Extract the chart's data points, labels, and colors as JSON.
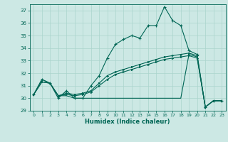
{
  "title": "",
  "xlabel": "Humidex (Indice chaleur)",
  "ylabel": "",
  "background_color": "#cce8e4",
  "grid_color": "#aad4cc",
  "line_color": "#006655",
  "xlim": [
    -0.5,
    23.5
  ],
  "ylim": [
    29,
    37.5
  ],
  "yticks": [
    29,
    30,
    31,
    32,
    33,
    34,
    35,
    36,
    37
  ],
  "xticks": [
    0,
    1,
    2,
    3,
    4,
    5,
    6,
    7,
    8,
    9,
    10,
    11,
    12,
    13,
    14,
    15,
    16,
    17,
    18,
    19,
    20,
    21,
    22,
    23
  ],
  "series1_x": [
    0,
    1,
    2,
    3,
    4,
    5,
    6,
    7,
    8,
    9,
    10,
    11,
    12,
    13,
    14,
    15,
    16,
    17,
    18,
    19,
    20,
    21,
    22,
    23
  ],
  "series1_y": [
    30.3,
    31.5,
    31.2,
    30.0,
    30.6,
    30.0,
    30.0,
    31.0,
    31.8,
    33.2,
    34.3,
    34.7,
    35.0,
    34.8,
    35.8,
    35.8,
    37.3,
    36.2,
    35.8,
    33.8,
    33.5,
    29.3,
    29.8,
    29.8
  ],
  "series2_x": [
    0,
    1,
    2,
    3,
    4,
    5,
    6,
    7,
    8,
    9,
    10,
    11,
    12,
    13,
    14,
    15,
    16,
    17,
    18,
    19,
    20,
    21,
    22,
    23
  ],
  "series2_y": [
    30.3,
    31.5,
    31.2,
    30.2,
    30.2,
    30.0,
    30.0,
    30.0,
    30.0,
    30.0,
    30.0,
    30.0,
    30.0,
    30.0,
    30.0,
    30.0,
    30.0,
    30.0,
    30.0,
    33.5,
    33.3,
    29.3,
    29.8,
    29.8
  ],
  "series3_x": [
    0,
    1,
    2,
    3,
    4,
    5,
    6,
    7,
    8,
    9,
    10,
    11,
    12,
    13,
    14,
    15,
    16,
    17,
    18,
    19,
    20,
    21,
    22,
    23
  ],
  "series3_y": [
    30.3,
    31.3,
    31.2,
    30.2,
    30.4,
    30.3,
    30.4,
    30.6,
    31.2,
    31.8,
    32.1,
    32.3,
    32.5,
    32.7,
    32.9,
    33.1,
    33.3,
    33.4,
    33.5,
    33.6,
    33.4,
    29.3,
    29.8,
    29.8
  ],
  "series4_x": [
    0,
    1,
    2,
    3,
    4,
    5,
    6,
    7,
    8,
    9,
    10,
    11,
    12,
    13,
    14,
    15,
    16,
    17,
    18,
    19,
    20,
    21,
    22,
    23
  ],
  "series4_y": [
    30.3,
    31.3,
    31.2,
    30.2,
    30.3,
    30.2,
    30.3,
    30.5,
    31.0,
    31.5,
    31.9,
    32.1,
    32.3,
    32.5,
    32.7,
    32.9,
    33.1,
    33.2,
    33.3,
    33.4,
    33.2,
    29.3,
    29.8,
    29.8
  ]
}
